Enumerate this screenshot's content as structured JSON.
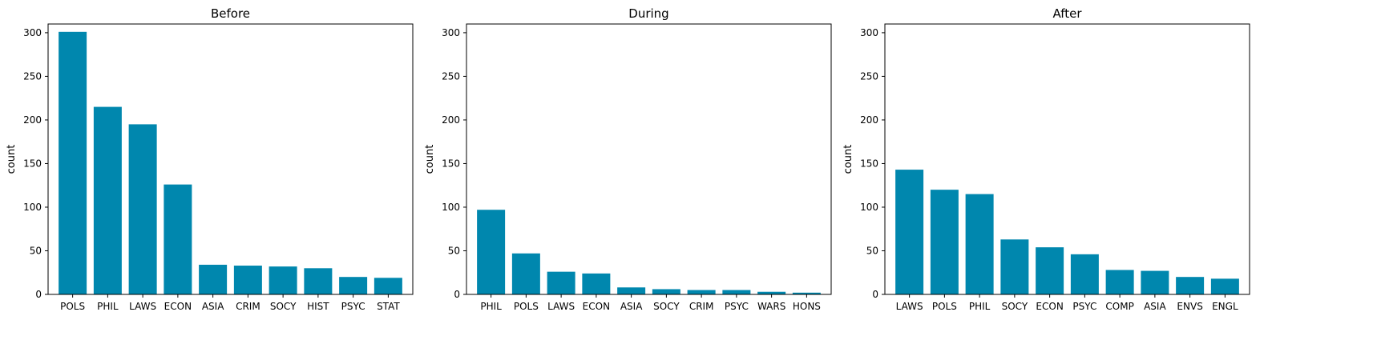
{
  "bar_color": "#0087ae",
  "chart_data": [
    {
      "type": "bar",
      "title": "Before",
      "ylabel": "count",
      "ylim": [
        0,
        310
      ],
      "yticks": [
        0,
        50,
        100,
        150,
        200,
        250,
        300
      ],
      "categories": [
        "POLS",
        "PHIL",
        "LAWS",
        "ECON",
        "ASIA",
        "CRIM",
        "SOCY",
        "HIST",
        "PSYC",
        "STAT"
      ],
      "values": [
        301,
        215,
        195,
        126,
        34,
        33,
        32,
        30,
        20,
        19
      ]
    },
    {
      "type": "bar",
      "title": "During",
      "ylabel": "count",
      "ylim": [
        0,
        310
      ],
      "yticks": [
        0,
        50,
        100,
        150,
        200,
        250,
        300
      ],
      "categories": [
        "PHIL",
        "POLS",
        "LAWS",
        "ECON",
        "ASIA",
        "SOCY",
        "CRIM",
        "PSYC",
        "WARS",
        "HONS"
      ],
      "values": [
        97,
        47,
        26,
        24,
        8,
        6,
        5,
        5,
        3,
        2
      ]
    },
    {
      "type": "bar",
      "title": "After",
      "ylabel": "count",
      "ylim": [
        0,
        310
      ],
      "yticks": [
        0,
        50,
        100,
        150,
        200,
        250,
        300
      ],
      "categories": [
        "LAWS",
        "POLS",
        "PHIL",
        "SOCY",
        "ECON",
        "PSYC",
        "COMP",
        "ASIA",
        "ENVS",
        "ENGL"
      ],
      "values": [
        143,
        120,
        115,
        63,
        54,
        46,
        28,
        27,
        20,
        18
      ]
    }
  ]
}
